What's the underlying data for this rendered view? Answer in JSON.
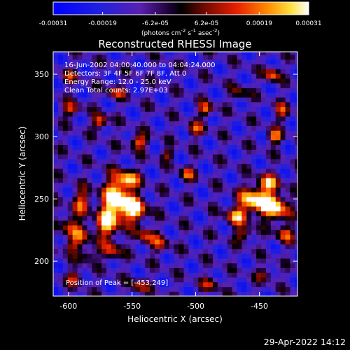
{
  "chart_data": {
    "type": "heatmap",
    "title": "Reconstructed RHESSI Image",
    "xlabel": "Heliocentric X (arcsec)",
    "ylabel": "Heliocentric Y (arcsec)",
    "xlim": [
      -612,
      -420
    ],
    "ylim": [
      172,
      368
    ],
    "x_ticks": [
      -600,
      -550,
      -500,
      -450
    ],
    "y_ticks": [
      200,
      250,
      300,
      350
    ],
    "colorbar": {
      "ticks": [
        -0.00031,
        -0.00019,
        -6.2e-05,
        6.2e-05,
        0.00019,
        0.00031
      ],
      "tick_labels": [
        "-0.00031",
        "-0.00019",
        "-6.2e-05",
        "6.2e-05",
        "0.00019",
        "0.00031"
      ],
      "range": [
        -0.00031,
        0.00031
      ],
      "label_main": "(photons cm",
      "label_sup1": "-2",
      "label_mid": " s",
      "label_sup2": "-1",
      "label_mid2": " asec",
      "label_sup3": "-2",
      "label_end": ")"
    },
    "annotations": {
      "time": "16-Jun-2002 04:00:40.000 to 04:04:24.000",
      "detectors": "Detectors: 3F 4F 5F 6F 7F 8F, Att 0",
      "energy": "Energy Range: 12.0 - 25.0 keV",
      "clean": "Clean    Total counts: 2.97E+03",
      "peak": "Position of Peak = [-453,249]"
    },
    "peak": {
      "x": -453,
      "y": 249
    },
    "sources": [
      {
        "x": -562,
        "y": 250,
        "sx": 8,
        "sy": 12,
        "a": 1.0
      },
      {
        "x": -548,
        "y": 242,
        "sx": 7,
        "sy": 7,
        "a": 0.85
      },
      {
        "x": -570,
        "y": 230,
        "sx": 6,
        "sy": 9,
        "a": 0.75
      },
      {
        "x": -553,
        "y": 266,
        "sx": 6,
        "sy": 5,
        "a": 0.7
      },
      {
        "x": -540,
        "y": 220,
        "sx": 5,
        "sy": 5,
        "a": 0.55
      },
      {
        "x": -566,
        "y": 208,
        "sx": 5,
        "sy": 5,
        "a": 0.55
      },
      {
        "x": -528,
        "y": 214,
        "sx": 5,
        "sy": 5,
        "a": 0.45
      },
      {
        "x": -453,
        "y": 249,
        "sx": 9,
        "sy": 7,
        "a": 1.0
      },
      {
        "x": -437,
        "y": 243,
        "sx": 7,
        "sy": 7,
        "a": 0.9
      },
      {
        "x": -468,
        "y": 236,
        "sx": 6,
        "sy": 5,
        "a": 0.7
      },
      {
        "x": -443,
        "y": 263,
        "sx": 6,
        "sy": 5,
        "a": 0.7
      },
      {
        "x": -462,
        "y": 222,
        "sx": 5,
        "sy": 4,
        "a": 0.55
      },
      {
        "x": -430,
        "y": 222,
        "sx": 5,
        "sy": 5,
        "a": 0.55
      },
      {
        "x": -590,
        "y": 248,
        "sx": 5,
        "sy": 7,
        "a": 0.6
      },
      {
        "x": -600,
        "y": 230,
        "sx": 5,
        "sy": 6,
        "a": 0.5
      },
      {
        "x": -590,
        "y": 222,
        "sx": 6,
        "sy": 6,
        "a": 0.5
      },
      {
        "x": -598,
        "y": 212,
        "sx": 5,
        "sy": 4,
        "a": 0.45
      },
      {
        "x": -585,
        "y": 205,
        "sx": 5,
        "sy": 4,
        "a": 0.45
      },
      {
        "x": -575,
        "y": 312,
        "sx": 4,
        "sy": 4,
        "a": 0.75
      },
      {
        "x": -545,
        "y": 296,
        "sx": 5,
        "sy": 4,
        "a": 0.7
      },
      {
        "x": -598,
        "y": 322,
        "sx": 5,
        "sy": 4,
        "a": 0.55
      },
      {
        "x": -563,
        "y": 336,
        "sx": 5,
        "sy": 4,
        "a": 0.5
      },
      {
        "x": -492,
        "y": 322,
        "sx": 4,
        "sy": 4,
        "a": 0.65
      },
      {
        "x": -500,
        "y": 306,
        "sx": 5,
        "sy": 4,
        "a": 0.5
      },
      {
        "x": -440,
        "y": 350,
        "sx": 4,
        "sy": 4,
        "a": 0.7
      },
      {
        "x": -438,
        "y": 300,
        "sx": 4,
        "sy": 4,
        "a": 0.7
      },
      {
        "x": -432,
        "y": 320,
        "sx": 4,
        "sy": 5,
        "a": 0.5
      },
      {
        "x": -507,
        "y": 270,
        "sx": 4,
        "sy": 4,
        "a": 0.55
      },
      {
        "x": -522,
        "y": 286,
        "sx": 4,
        "sy": 3,
        "a": 0.45
      },
      {
        "x": -595,
        "y": 187,
        "sx": 5,
        "sy": 4,
        "a": 0.5
      },
      {
        "x": -545,
        "y": 180,
        "sx": 5,
        "sy": 4,
        "a": 0.5
      },
      {
        "x": -488,
        "y": 182,
        "sx": 5,
        "sy": 4,
        "a": 0.45
      },
      {
        "x": -445,
        "y": 190,
        "sx": 5,
        "sy": 4,
        "a": 0.4
      },
      {
        "x": -465,
        "y": 335,
        "sx": 5,
        "sy": 4,
        "a": 0.4
      },
      {
        "x": -600,
        "y": 348,
        "sx": 4,
        "sy": 4,
        "a": 0.4
      }
    ]
  },
  "footer": {
    "timestamp": "29-Apr-2022 14:12"
  }
}
